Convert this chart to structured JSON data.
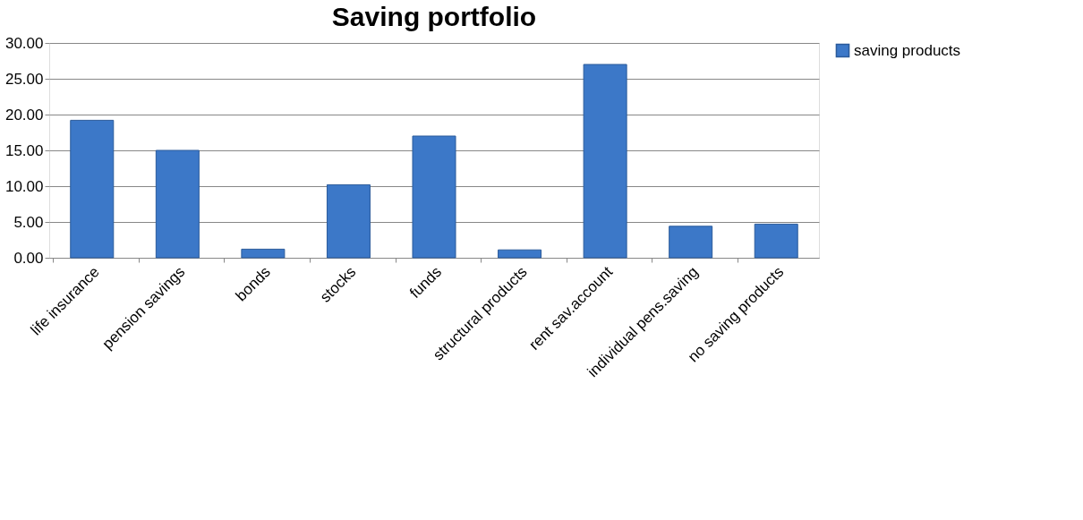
{
  "chart_data": {
    "type": "bar",
    "title": "Saving portfolio",
    "categories": [
      "life insurance",
      "pension savings",
      "bonds",
      "stocks",
      "funds",
      "structural products",
      "rent sav.account",
      "individual pens.saving",
      "no saving products"
    ],
    "series": [
      {
        "name": "saving products",
        "color": "#3c78c8",
        "values": [
          19.2,
          15.0,
          1.2,
          10.2,
          17.0,
          1.1,
          27.0,
          4.4,
          4.7
        ]
      }
    ],
    "ylim": [
      0,
      30
    ],
    "yticks": [
      {
        "value": 0,
        "label": "0.00"
      },
      {
        "value": 5,
        "label": "5.00"
      },
      {
        "value": 10,
        "label": "10.00"
      },
      {
        "value": 15,
        "label": "15.00"
      },
      {
        "value": 20,
        "label": "20.00"
      },
      {
        "value": 25,
        "label": "25.00"
      },
      {
        "value": 30,
        "label": "30.00"
      }
    ],
    "grid": "y",
    "legend": "right"
  }
}
